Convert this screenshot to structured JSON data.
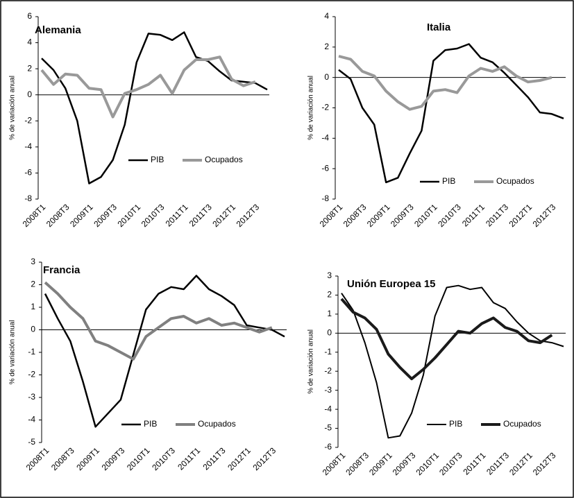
{
  "chart_data": [
    {
      "type": "line",
      "title": "Alemania",
      "y_label": "% de variación anual",
      "categories": [
        "2008T1",
        null,
        "2008T3",
        null,
        "2009T1",
        null,
        "2009T3",
        null,
        "2010T1",
        null,
        "2010T3",
        null,
        "2011T1",
        null,
        "2011T3",
        null,
        "2012T1",
        null,
        "2012T3",
        null
      ],
      "series": [
        {
          "name": "PIB",
          "color": "#000000",
          "values": [
            2.8,
            1.9,
            0.5,
            -2.0,
            -6.8,
            -6.3,
            -5.0,
            -2.3,
            2.5,
            4.7,
            4.6,
            4.2,
            4.8,
            2.9,
            2.6,
            1.8,
            1.1,
            1.0,
            0.9,
            0.4
          ]
        },
        {
          "name": "Ocupados",
          "color": "#999999",
          "values": [
            1.9,
            0.8,
            1.6,
            1.5,
            0.5,
            0.4,
            -1.7,
            0.1,
            0.4,
            0.8,
            1.5,
            0.1,
            1.9,
            2.7,
            2.7,
            2.9,
            1.2,
            0.7,
            1.0,
            null
          ]
        }
      ],
      "ylim": [
        -8,
        6
      ],
      "yticks": [
        -8,
        -6,
        -4,
        -2,
        0,
        2,
        4,
        6
      ]
    },
    {
      "type": "line",
      "title": "Italia",
      "y_label": "% de variación anual",
      "categories": [
        "2008T1",
        null,
        "2008T3",
        null,
        "2009T1",
        null,
        "2009T3",
        null,
        "2010T1",
        null,
        "2010T3",
        null,
        "2011T1",
        null,
        "2011T3",
        null,
        "2012T1",
        null,
        "2012T3",
        null
      ],
      "series": [
        {
          "name": "PIB",
          "color": "#000000",
          "values": [
            0.5,
            -0.1,
            -2.0,
            -3.1,
            -6.9,
            -6.6,
            -5.0,
            -3.5,
            1.1,
            1.8,
            1.9,
            2.2,
            1.3,
            1.0,
            0.3,
            -0.5,
            -1.3,
            -2.3,
            -2.4,
            -2.7
          ]
        },
        {
          "name": "Ocupados",
          "color": "#999999",
          "values": [
            1.4,
            1.2,
            0.4,
            0.1,
            -0.9,
            -1.6,
            -2.1,
            -1.9,
            -0.9,
            -0.8,
            -1.0,
            0.1,
            0.6,
            0.4,
            0.7,
            0.1,
            -0.3,
            -0.2,
            0.0,
            null
          ]
        }
      ],
      "ylim": [
        -8,
        4
      ],
      "yticks": [
        -8,
        -6,
        -4,
        -2,
        0,
        2,
        4
      ]
    },
    {
      "type": "line",
      "title": "Francia",
      "y_label": "% de variación anual",
      "categories": [
        "2008T1",
        null,
        "2008T3",
        null,
        "2009T1",
        null,
        "2009T3",
        null,
        "2010T1",
        null,
        "2010T3",
        null,
        "2011T1",
        null,
        "2011T3",
        null,
        "2012T1",
        null,
        "2012T3",
        null
      ],
      "series": [
        {
          "name": "PIB",
          "color": "#000000",
          "values": [
            1.6,
            0.5,
            -0.5,
            -2.3,
            -4.3,
            -3.7,
            -3.1,
            -1.1,
            0.9,
            1.6,
            1.9,
            1.8,
            2.4,
            1.8,
            1.5,
            1.1,
            0.2,
            0.1,
            0.0,
            -0.3
          ]
        },
        {
          "name": "Ocupados",
          "color": "#808080",
          "values": [
            2.1,
            1.6,
            1.0,
            0.5,
            -0.5,
            -0.7,
            -1.0,
            -1.3,
            -0.3,
            0.1,
            0.5,
            0.6,
            0.3,
            0.5,
            0.2,
            0.3,
            0.1,
            -0.1,
            0.1,
            null
          ]
        }
      ],
      "ylim": [
        -5,
        3
      ],
      "yticks": [
        -5,
        -4,
        -3,
        -2,
        -1,
        0,
        1,
        2,
        3
      ]
    },
    {
      "type": "line",
      "title": "Unión Europea 15",
      "y_label": "% de variación anual",
      "categories": [
        "2008T1",
        null,
        "2008T3",
        null,
        "2009T1",
        null,
        "2009T3",
        null,
        "2010T1",
        null,
        "2010T3",
        null,
        "2011T1",
        null,
        "2011T3",
        null,
        "2012T1",
        null,
        "2012T3",
        null
      ],
      "series": [
        {
          "name": "PIB",
          "color": "#000000",
          "values": [
            2.1,
            1.2,
            -0.5,
            -2.6,
            -5.5,
            -5.4,
            -4.2,
            -2.2,
            0.9,
            2.4,
            2.5,
            2.3,
            2.4,
            1.6,
            1.3,
            0.6,
            0.0,
            -0.4,
            -0.5,
            -0.7
          ]
        },
        {
          "name": "Ocupados",
          "color": "#1a1a1a",
          "values": [
            1.8,
            1.1,
            0.8,
            0.2,
            -1.1,
            -1.8,
            -2.4,
            -1.9,
            -1.3,
            -0.6,
            0.1,
            0.0,
            0.5,
            0.8,
            0.3,
            0.1,
            -0.4,
            -0.5,
            -0.1,
            null
          ]
        }
      ],
      "ylim": [
        -6,
        3
      ],
      "yticks": [
        -6,
        -5,
        -4,
        -3,
        -2,
        -1,
        0,
        1,
        2,
        3
      ]
    }
  ]
}
